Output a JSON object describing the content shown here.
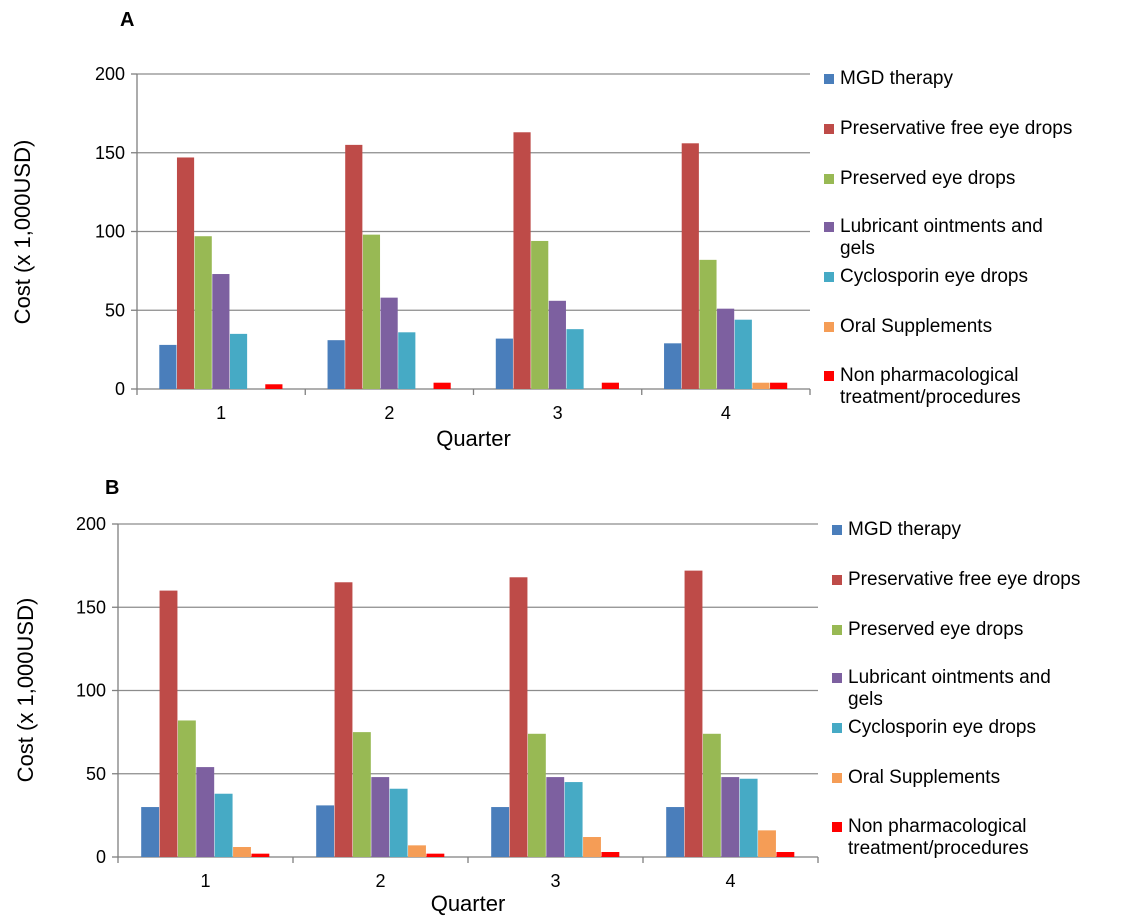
{
  "chart_data": [
    {
      "type": "bar",
      "panel_label": "A",
      "xlabel": "Quarter",
      "ylabel": "Cost (x 1,000USD)",
      "ylim": [
        0,
        200
      ],
      "yticks": [
        "0",
        "50",
        "100",
        "150",
        "200"
      ],
      "categories": [
        "1",
        "2",
        "3",
        "4"
      ],
      "grid": true,
      "legend_position": "right",
      "series": [
        {
          "name": "MGD therapy",
          "color": "#4a7ebb",
          "values": [
            28,
            31,
            32,
            29
          ]
        },
        {
          "name": "Preservative free eye drops",
          "color": "#be4b48",
          "values": [
            147,
            155,
            163,
            156
          ]
        },
        {
          "name": "Preserved eye drops",
          "color": "#98b954",
          "values": [
            97,
            98,
            94,
            82
          ]
        },
        {
          "name": "Lubricant ointments and gels",
          "color": "#7d60a0",
          "values": [
            73,
            58,
            56,
            51
          ]
        },
        {
          "name": "Cyclosporin eye drops",
          "color": "#46aac5",
          "values": [
            35,
            36,
            38,
            44
          ]
        },
        {
          "name": "Oral Supplements",
          "color": "#f59d56",
          "values": [
            0,
            0,
            0,
            4
          ]
        },
        {
          "name": "Non pharmacological treatment/procedures",
          "color": "#ff0000",
          "values": [
            3,
            4,
            4,
            4
          ]
        }
      ]
    },
    {
      "type": "bar",
      "panel_label": "B",
      "xlabel": "Quarter",
      "ylabel": "Cost (x 1,000USD)",
      "ylim": [
        0,
        200
      ],
      "yticks": [
        "0",
        "50",
        "100",
        "150",
        "200"
      ],
      "categories": [
        "1",
        "2",
        "3",
        "4"
      ],
      "grid": true,
      "legend_position": "right",
      "series": [
        {
          "name": "MGD therapy",
          "color": "#4a7ebb",
          "values": [
            30,
            31,
            30,
            30
          ]
        },
        {
          "name": "Preservative free eye drops",
          "color": "#be4b48",
          "values": [
            160,
            165,
            168,
            172
          ]
        },
        {
          "name": "Preserved eye drops",
          "color": "#98b954",
          "values": [
            82,
            75,
            74,
            74
          ]
        },
        {
          "name": "Lubricant ointments and gels",
          "color": "#7d60a0",
          "values": [
            54,
            48,
            48,
            48
          ]
        },
        {
          "name": "Cyclosporin eye drops",
          "color": "#46aac5",
          "values": [
            38,
            41,
            45,
            47
          ]
        },
        {
          "name": "Oral Supplements",
          "color": "#f59d56",
          "values": [
            6,
            7,
            12,
            16
          ]
        },
        {
          "name": "Non pharmacological treatment/procedures",
          "color": "#ff0000",
          "values": [
            2,
            2,
            3,
            3
          ]
        }
      ]
    }
  ]
}
